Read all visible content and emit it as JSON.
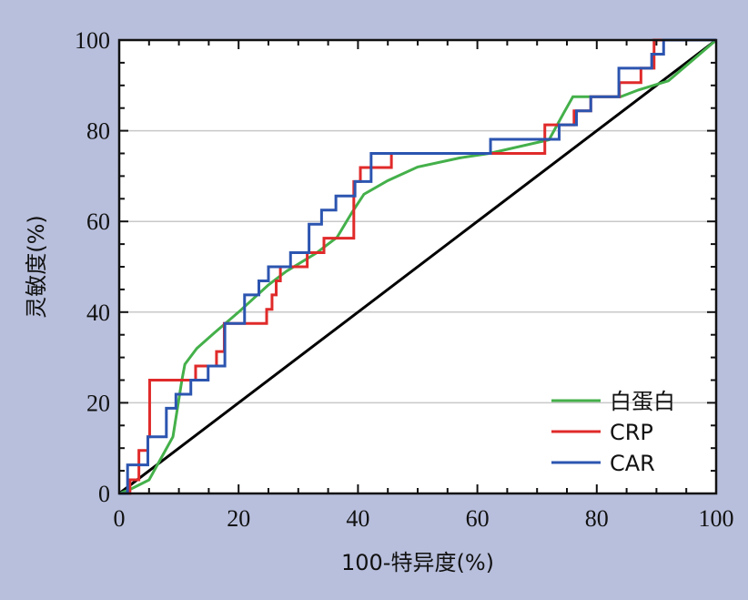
{
  "chart_data": {
    "type": "line",
    "title": "",
    "xlabel": "100-特异度(%)",
    "ylabel": "灵敏度(%)",
    "xlim": [
      0,
      100
    ],
    "ylim": [
      0,
      100
    ],
    "x_ticks": [
      "0",
      "20",
      "40",
      "60",
      "80",
      "100"
    ],
    "y_ticks": [
      "0",
      "20",
      "40",
      "60",
      "80",
      "100"
    ],
    "grid": "horizontal",
    "legend_position": "bottom-right",
    "colors": {
      "background": "#b8bfdc",
      "plot_area": "#ffffff",
      "gridline": "#c8c8c8",
      "reference": "#000000"
    },
    "reference_line": {
      "x": [
        0,
        100
      ],
      "y": [
        0,
        100
      ],
      "color": "#000000"
    },
    "series": [
      {
        "name": "白蛋白",
        "color": "#44b04a",
        "step": false,
        "x": [
          0,
          2,
          5,
          9,
          10.5,
          11,
          13,
          16,
          20,
          25,
          28,
          33,
          36.5,
          39,
          41,
          45,
          50,
          57,
          62,
          72,
          74.5,
          76,
          82,
          84,
          87,
          92,
          100
        ],
        "y": [
          0,
          1,
          3,
          12.5,
          25,
          28.5,
          32,
          35.5,
          40,
          46,
          49,
          53,
          56.5,
          62,
          66,
          69,
          72,
          74,
          75,
          78,
          84,
          87.5,
          87.5,
          87.5,
          89,
          91,
          100
        ]
      },
      {
        "name": "CRP",
        "color": "#e02a2a",
        "step": true,
        "x": [
          0,
          0.8,
          1.8,
          3.3,
          4.8,
          5.1,
          10.5,
          12.8,
          14.9,
          16.3,
          17.6,
          23.6,
          24.7,
          25.6,
          26.3,
          27,
          31.5,
          34.3,
          37.2,
          39.3,
          40.4,
          41.7,
          45.6,
          55,
          62,
          71.3,
          76.2,
          79,
          83.8,
          85.2,
          87.4,
          88.5,
          89.6,
          100
        ],
        "y": [
          0,
          0,
          3,
          9.5,
          12.5,
          25,
          25,
          28.1,
          28.1,
          31.3,
          37.5,
          37.5,
          40.6,
          43.8,
          46.9,
          50,
          53.1,
          56.3,
          56.3,
          68.8,
          71.9,
          71.9,
          75,
          75,
          75,
          81.3,
          84.4,
          87.5,
          90.6,
          90.6,
          93.8,
          93.8,
          100,
          100
        ]
      },
      {
        "name": "CAR",
        "color": "#2c55b0",
        "step": true,
        "x": [
          0,
          1.4,
          4.8,
          7.9,
          9.5,
          12,
          14.9,
          17.7,
          21,
          23.4,
          25,
          28.7,
          31.8,
          33.9,
          36.3,
          38.7,
          39.5,
          42.2,
          62.2,
          72.4,
          73.7,
          76.6,
          79,
          83.7,
          88.2,
          89.2,
          91.2,
          100
        ],
        "y": [
          0,
          6.3,
          12.5,
          18.8,
          21.9,
          25,
          28.1,
          37.5,
          43.8,
          46.9,
          50,
          53.1,
          59.4,
          62.5,
          65.6,
          65.6,
          68.8,
          75,
          78.1,
          78.1,
          81.3,
          84.4,
          87.5,
          93.8,
          93.8,
          96.9,
          100,
          100
        ]
      }
    ]
  }
}
